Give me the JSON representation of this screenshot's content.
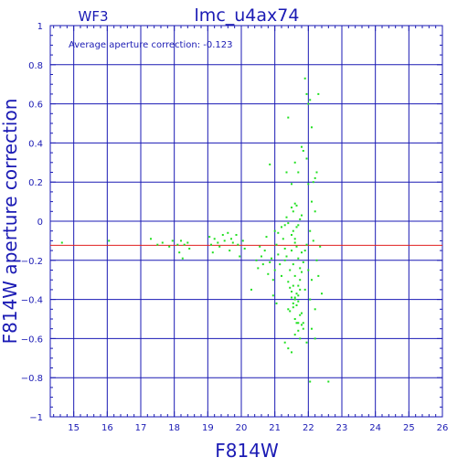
{
  "chart_data": {
    "type": "scatter",
    "title": "lmc_u4ax74",
    "panel_label": "WF3",
    "annotation": "Average aperture correction:  -0.123",
    "xlabel": "F814W",
    "ylabel": "F814W  aperture  correction",
    "xlim": [
      14.3,
      26
    ],
    "ylim": [
      -1,
      1
    ],
    "x_ticks": [
      15,
      16,
      17,
      18,
      19,
      20,
      21,
      22,
      23,
      24,
      25,
      26
    ],
    "y_ticks": [
      -1,
      -0.8,
      -0.6,
      -0.4,
      -0.2,
      0,
      0.2,
      0.4,
      0.6,
      0.8,
      1
    ],
    "x_tick_labels": [
      "15",
      "16",
      "17",
      "18",
      "19",
      "20",
      "21",
      "22",
      "23",
      "24",
      "25",
      "26"
    ],
    "y_tick_labels": [
      "−1",
      "−0.8",
      "−0.6",
      "−0.4",
      "−0.2",
      "0",
      "0.2",
      "0.4",
      "0.6",
      "0.8",
      "1"
    ],
    "grid": true,
    "reference_line": {
      "y": -0.123,
      "color": "#e02020"
    },
    "series": [
      {
        "color": "#22e022",
        "x": [
          14.65,
          16.05,
          17.3,
          17.5,
          17.65,
          17.85,
          17.95,
          18.1,
          18.15,
          18.2,
          18.3,
          18.4,
          18.45,
          18.25,
          19.05,
          19.1,
          19.2,
          19.3,
          19.45,
          19.5,
          19.6,
          19.7,
          19.75,
          19.85,
          19.9,
          20.05,
          20.1,
          19.15,
          19.35,
          19.65,
          19.95,
          20.3,
          20.45,
          20.5,
          20.6,
          20.65,
          20.7,
          20.8,
          20.85,
          20.9,
          20.95,
          21.0,
          21.05,
          21.1,
          21.15,
          21.2,
          21.25,
          21.3,
          20.55,
          20.75,
          21.0,
          21.1,
          21.2,
          21.3,
          21.35,
          21.4,
          20.95,
          21.05,
          21.4,
          21.45,
          21.5,
          21.5,
          21.55,
          21.6,
          21.6,
          21.65,
          21.7,
          21.7,
          21.75,
          21.8,
          21.4,
          21.45,
          21.55,
          21.6,
          21.65,
          21.7,
          21.75,
          21.3,
          21.35,
          21.45,
          21.5,
          21.55,
          21.6,
          21.65,
          21.7,
          21.75,
          21.8,
          21.85,
          21.5,
          21.55,
          21.6,
          21.65,
          21.7,
          21.75,
          21.8,
          21.5,
          21.55,
          21.6,
          21.65,
          21.35,
          21.4,
          21.5,
          21.6,
          21.7,
          21.8,
          21.85,
          21.6,
          21.65,
          21.7,
          21.75,
          21.8,
          21.85,
          21.3,
          21.4,
          21.5,
          21.6,
          21.7,
          21.8,
          20.85,
          21.55,
          21.9,
          21.95,
          22.0,
          22.05,
          22.1,
          22.15,
          22.2,
          22.25,
          22.3,
          21.95,
          22.0,
          22.1,
          22.2,
          21.9,
          21.95,
          22.05,
          22.15,
          22.25,
          22.35,
          22.0,
          22.1,
          22.3,
          21.9,
          22.05,
          21.75,
          21.85,
          22.1,
          22.2,
          22.4,
          22.6,
          21.95,
          22.05,
          22.2
        ],
        "y": [
          -0.11,
          -0.1,
          -0.09,
          -0.12,
          -0.11,
          -0.13,
          -0.1,
          -0.12,
          -0.16,
          -0.1,
          -0.12,
          -0.11,
          -0.14,
          -0.19,
          -0.08,
          -0.12,
          -0.09,
          -0.11,
          -0.07,
          -0.1,
          -0.06,
          -0.09,
          -0.11,
          -0.07,
          -0.12,
          -0.1,
          -0.14,
          -0.16,
          -0.13,
          -0.15,
          -0.18,
          -0.35,
          -0.2,
          -0.24,
          -0.18,
          -0.22,
          -0.15,
          -0.27,
          -0.21,
          -0.19,
          -0.3,
          -0.25,
          -0.12,
          -0.17,
          -0.22,
          -0.28,
          -0.09,
          -0.14,
          -0.13,
          -0.08,
          -0.05,
          -0.06,
          -0.03,
          -0.02,
          0.02,
          -0.01,
          -0.38,
          -0.42,
          -0.31,
          -0.34,
          -0.36,
          -0.39,
          -0.33,
          -0.28,
          -0.4,
          -0.37,
          -0.41,
          -0.33,
          -0.3,
          -0.26,
          -0.45,
          -0.46,
          -0.42,
          -0.39,
          -0.43,
          -0.38,
          -0.35,
          -0.2,
          -0.18,
          -0.25,
          -0.15,
          -0.22,
          -0.11,
          -0.13,
          -0.19,
          -0.24,
          -0.16,
          -0.21,
          -0.07,
          -0.05,
          -0.09,
          -0.03,
          -0.02,
          0.01,
          0.03,
          0.07,
          0.05,
          0.09,
          0.08,
          0.25,
          0.53,
          0.19,
          0.3,
          0.25,
          0.38,
          0.36,
          -0.5,
          -0.52,
          -0.56,
          -0.6,
          -0.53,
          -0.55,
          -0.62,
          -0.65,
          -0.67,
          -0.58,
          -0.52,
          -0.47,
          0.29,
          -0.44,
          0.73,
          0.65,
          0.6,
          0.62,
          0.48,
          0.2,
          0.22,
          0.25,
          0.65,
          0.32,
          0.19,
          0.1,
          0.05,
          -0.15,
          -0.12,
          -0.05,
          -0.1,
          -0.2,
          -0.13,
          -0.25,
          -0.3,
          -0.28,
          -0.35,
          -0.4,
          -0.48,
          -0.52,
          -0.55,
          -0.6,
          -0.37,
          -0.82,
          -0.62,
          -0.82,
          -0.45
        ]
      }
    ]
  }
}
